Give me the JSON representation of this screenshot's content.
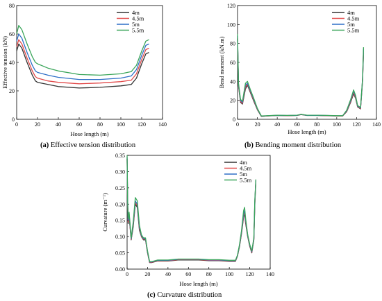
{
  "chart_data": [
    {
      "type": "line",
      "caption_id": "(a)",
      "caption_text": "Effective tension distribution",
      "xlabel": "Hose length (m)",
      "ylabel": "Effective tension (kN)",
      "xlim": [
        0,
        140
      ],
      "ylim": [
        0,
        80
      ],
      "xticks": [
        0,
        20,
        40,
        60,
        80,
        100,
        120,
        140
      ],
      "yticks": [
        0,
        20,
        40,
        60,
        80
      ],
      "legend_position": "top-right",
      "series": [
        {
          "name": "4m",
          "color": "#333333",
          "x": [
            0,
            2,
            5,
            10,
            15,
            18,
            20,
            30,
            40,
            60,
            80,
            100,
            110,
            115,
            120,
            124,
            127
          ],
          "y": [
            48,
            53,
            50,
            40,
            31,
            27,
            26,
            24.5,
            23,
            22,
            22.5,
            23.5,
            24.5,
            29,
            39,
            46,
            47
          ]
        },
        {
          "name": "4.5m",
          "color": "#e24a4a",
          "x": [
            0,
            2,
            5,
            10,
            15,
            18,
            20,
            30,
            40,
            60,
            80,
            100,
            110,
            115,
            120,
            124,
            127
          ],
          "y": [
            51,
            56,
            53,
            43,
            34,
            30,
            29,
            27,
            26,
            25,
            25.5,
            26.5,
            27.5,
            32,
            42,
            49,
            50
          ]
        },
        {
          "name": "5m",
          "color": "#2d6fc7",
          "x": [
            0,
            2,
            5,
            10,
            15,
            18,
            20,
            30,
            40,
            60,
            80,
            100,
            110,
            115,
            120,
            124,
            127
          ],
          "y": [
            55,
            60,
            57,
            47,
            38,
            34,
            33,
            31,
            29.5,
            28,
            28,
            29,
            30.5,
            35,
            45,
            52,
            53
          ]
        },
        {
          "name": "5.5m",
          "color": "#3aa55a",
          "x": [
            0,
            2,
            5,
            10,
            15,
            18,
            20,
            30,
            40,
            60,
            80,
            100,
            110,
            115,
            120,
            124,
            127
          ],
          "y": [
            60,
            66,
            63,
            53,
            44,
            40,
            39,
            36,
            34,
            31.5,
            31,
            32,
            33.5,
            38,
            48,
            55,
            56
          ]
        }
      ]
    },
    {
      "type": "line",
      "caption_id": "(b)",
      "caption_text": "Bending moment distribution",
      "xlabel": "Hose length (m)",
      "ylabel": "Bend moment (kN.m)",
      "xlim": [
        0,
        140
      ],
      "ylim": [
        0,
        120
      ],
      "xticks": [
        0,
        20,
        40,
        60,
        80,
        100,
        120,
        140
      ],
      "yticks": [
        0,
        20,
        40,
        60,
        80,
        100,
        120
      ],
      "legend_position": "top-right",
      "series": [
        {
          "name": "4m",
          "color": "#333333",
          "x": [
            0,
            1,
            3,
            5,
            8,
            10,
            13,
            16,
            20,
            24,
            30,
            40,
            50,
            60,
            64,
            70,
            80,
            90,
            100,
            106,
            110,
            114,
            117,
            119,
            121,
            124,
            126,
            127
          ],
          "y": [
            85,
            35,
            18,
            16,
            32,
            36,
            28,
            20,
            10,
            3,
            3.5,
            4,
            3.8,
            4,
            5,
            4,
            4,
            3.8,
            3.5,
            3.5,
            8,
            18,
            27,
            22,
            13,
            11,
            40,
            70
          ]
        },
        {
          "name": "4.5m",
          "color": "#e24a4a",
          "x": [
            0,
            1,
            3,
            5,
            8,
            10,
            13,
            16,
            20,
            24,
            30,
            40,
            50,
            60,
            64,
            70,
            80,
            90,
            100,
            106,
            110,
            114,
            117,
            119,
            121,
            124,
            126,
            127
          ],
          "y": [
            86,
            36,
            19,
            17,
            34,
            37,
            29,
            21,
            10.5,
            3.2,
            3.6,
            4.1,
            3.9,
            4.1,
            5.1,
            4.1,
            4.1,
            3.9,
            3.6,
            3.6,
            8.5,
            19,
            28.5,
            23,
            13.5,
            11.5,
            41,
            72
          ]
        },
        {
          "name": "5m",
          "color": "#2d6fc7",
          "x": [
            0,
            1,
            3,
            5,
            8,
            10,
            13,
            16,
            20,
            24,
            30,
            40,
            50,
            60,
            64,
            70,
            80,
            90,
            100,
            106,
            110,
            114,
            117,
            119,
            121,
            124,
            126,
            127
          ],
          "y": [
            88,
            37,
            20,
            18,
            36,
            38,
            30,
            22,
            11,
            3.4,
            3.7,
            4.2,
            4,
            4.2,
            5.2,
            4.2,
            4.2,
            4,
            3.7,
            3.7,
            9,
            20,
            30,
            24,
            14,
            12,
            42,
            74
          ]
        },
        {
          "name": "5.5m",
          "color": "#3aa55a",
          "x": [
            0,
            1,
            3,
            5,
            8,
            10,
            13,
            16,
            20,
            24,
            30,
            40,
            50,
            60,
            64,
            70,
            80,
            90,
            100,
            106,
            110,
            114,
            117,
            119,
            121,
            124,
            126,
            127
          ],
          "y": [
            90,
            38,
            21,
            19,
            38,
            40,
            31,
            23,
            11.5,
            3.5,
            3.8,
            4.3,
            4.1,
            4.3,
            5.3,
            4.3,
            4.3,
            4.1,
            3.8,
            3.8,
            9.5,
            21,
            31,
            25,
            14.5,
            12.5,
            43,
            76
          ]
        }
      ]
    },
    {
      "type": "line",
      "caption_id": "(c)",
      "caption_text": "Curvature distribution",
      "xlabel": "Hose length (m)",
      "ylabel": "Curvature (m⁻¹)",
      "xlim": [
        0,
        140
      ],
      "ylim": [
        0,
        0.35
      ],
      "xticks": [
        0,
        20,
        40,
        60,
        80,
        100,
        120,
        140
      ],
      "yticks": [
        0.0,
        0.05,
        0.1,
        0.15,
        0.2,
        0.25,
        0.3,
        0.35
      ],
      "ytick_labels": [
        "0.00",
        "0.05",
        "0.10",
        "0.15",
        "0.20",
        "0.25",
        "0.30",
        "0.35"
      ],
      "legend_position": "top-right",
      "series": [
        {
          "name": "4m",
          "color": "#333333",
          "x": [
            0,
            0.5,
            1,
            2,
            4,
            6,
            8,
            10,
            12,
            14,
            16,
            18,
            20,
            22,
            24,
            30,
            40,
            50,
            60,
            70,
            80,
            90,
            100,
            106,
            108,
            110,
            112,
            114,
            115,
            116,
            118,
            120,
            122,
            124,
            125,
            126
          ],
          "y": [
            0.34,
            0.2,
            0.14,
            0.16,
            0.09,
            0.13,
            0.2,
            0.19,
            0.12,
            0.1,
            0.09,
            0.09,
            0.05,
            0.02,
            0.02,
            0.025,
            0.025,
            0.028,
            0.028,
            0.028,
            0.026,
            0.026,
            0.024,
            0.024,
            0.04,
            0.07,
            0.11,
            0.16,
            0.17,
            0.14,
            0.1,
            0.07,
            0.05,
            0.09,
            0.2,
            0.27
          ]
        },
        {
          "name": "4.5m",
          "color": "#e24a4a",
          "x": [
            0,
            0.5,
            1,
            2,
            4,
            6,
            8,
            10,
            12,
            14,
            16,
            18,
            20,
            22,
            24,
            30,
            40,
            50,
            60,
            70,
            80,
            90,
            100,
            106,
            108,
            110,
            112,
            114,
            115,
            116,
            118,
            120,
            122,
            124,
            125,
            126
          ],
          "y": [
            0.34,
            0.21,
            0.145,
            0.165,
            0.092,
            0.135,
            0.205,
            0.195,
            0.125,
            0.102,
            0.092,
            0.092,
            0.052,
            0.021,
            0.021,
            0.026,
            0.026,
            0.029,
            0.029,
            0.029,
            0.027,
            0.027,
            0.025,
            0.025,
            0.041,
            0.072,
            0.113,
            0.165,
            0.175,
            0.145,
            0.102,
            0.072,
            0.052,
            0.092,
            0.205,
            0.272
          ]
        },
        {
          "name": "5m",
          "color": "#2d6fc7",
          "x": [
            0,
            0.5,
            1,
            2,
            4,
            6,
            8,
            10,
            12,
            14,
            16,
            18,
            20,
            22,
            24,
            30,
            40,
            50,
            60,
            70,
            80,
            90,
            100,
            106,
            108,
            110,
            112,
            114,
            115,
            116,
            118,
            120,
            122,
            124,
            125,
            126
          ],
          "y": [
            0.345,
            0.215,
            0.15,
            0.17,
            0.094,
            0.14,
            0.21,
            0.2,
            0.13,
            0.104,
            0.094,
            0.094,
            0.054,
            0.022,
            0.022,
            0.027,
            0.027,
            0.03,
            0.03,
            0.03,
            0.028,
            0.028,
            0.026,
            0.026,
            0.042,
            0.074,
            0.116,
            0.17,
            0.18,
            0.15,
            0.104,
            0.074,
            0.054,
            0.094,
            0.21,
            0.274
          ]
        },
        {
          "name": "5.5m",
          "color": "#3aa55a",
          "x": [
            0,
            0.5,
            1,
            2,
            4,
            6,
            8,
            10,
            12,
            14,
            16,
            18,
            20,
            22,
            24,
            30,
            40,
            50,
            60,
            70,
            80,
            90,
            100,
            106,
            108,
            110,
            112,
            114,
            115,
            116,
            118,
            120,
            122,
            124,
            125,
            126
          ],
          "y": [
            0.35,
            0.22,
            0.155,
            0.175,
            0.096,
            0.145,
            0.22,
            0.21,
            0.135,
            0.106,
            0.096,
            0.096,
            0.056,
            0.023,
            0.023,
            0.028,
            0.028,
            0.031,
            0.031,
            0.031,
            0.029,
            0.029,
            0.027,
            0.027,
            0.043,
            0.076,
            0.12,
            0.18,
            0.19,
            0.155,
            0.106,
            0.076,
            0.056,
            0.096,
            0.215,
            0.276
          ]
        }
      ]
    }
  ]
}
